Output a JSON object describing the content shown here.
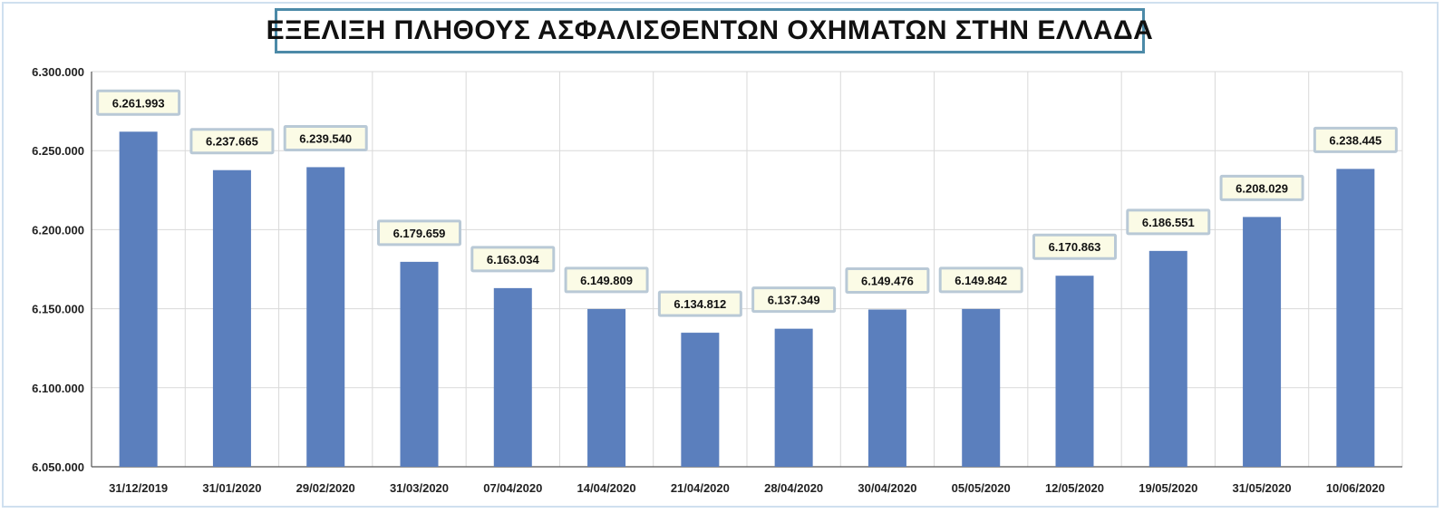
{
  "chart_data": {
    "type": "bar",
    "title": "ΕΞΕΛΙΞΗ ΠΛΗΘΟΥΣ ΑΣΦΑΛΙΣΘΕΝΤΩΝ ΟΧΗΜΑΤΩΝ ΣΤΗΝ ΕΛΛΑΔΑ",
    "xlabel": "",
    "ylabel": "",
    "ylim": [
      6050000,
      6300000
    ],
    "yticks": [
      6050000,
      6100000,
      6150000,
      6200000,
      6250000,
      6300000
    ],
    "ytick_labels": [
      "6.050.000",
      "6.100.000",
      "6.150.000",
      "6.200.000",
      "6.250.000",
      "6.300.000"
    ],
    "grid": true,
    "legend": "none",
    "categories": [
      "31/12/2019",
      "31/01/2020",
      "29/02/2020",
      "31/03/2020",
      "07/04/2020",
      "14/04/2020",
      "21/04/2020",
      "28/04/2020",
      "30/04/2020",
      "05/05/2020",
      "12/05/2020",
      "19/05/2020",
      "31/05/2020",
      "10/06/2020"
    ],
    "values": [
      6261993,
      6237665,
      6239540,
      6179659,
      6163034,
      6149809,
      6134812,
      6137349,
      6149476,
      6149842,
      6170863,
      6186551,
      6208029,
      6238445
    ],
    "value_labels": [
      "6.261.993",
      "6.237.665",
      "6.239.540",
      "6.179.659",
      "6.163.034",
      "6.149.809",
      "6.134.812",
      "6.137.349",
      "6.149.476",
      "6.149.842",
      "6.170.863",
      "6.186.551",
      "6.208.029",
      "6.238.445"
    ],
    "colors": {
      "bar": "#5b7fbd",
      "label_bg": "#fbfbe6",
      "label_border": "#b9c9d6",
      "grid": "#d9d9d9",
      "title_border": "#4c8aa8"
    }
  }
}
